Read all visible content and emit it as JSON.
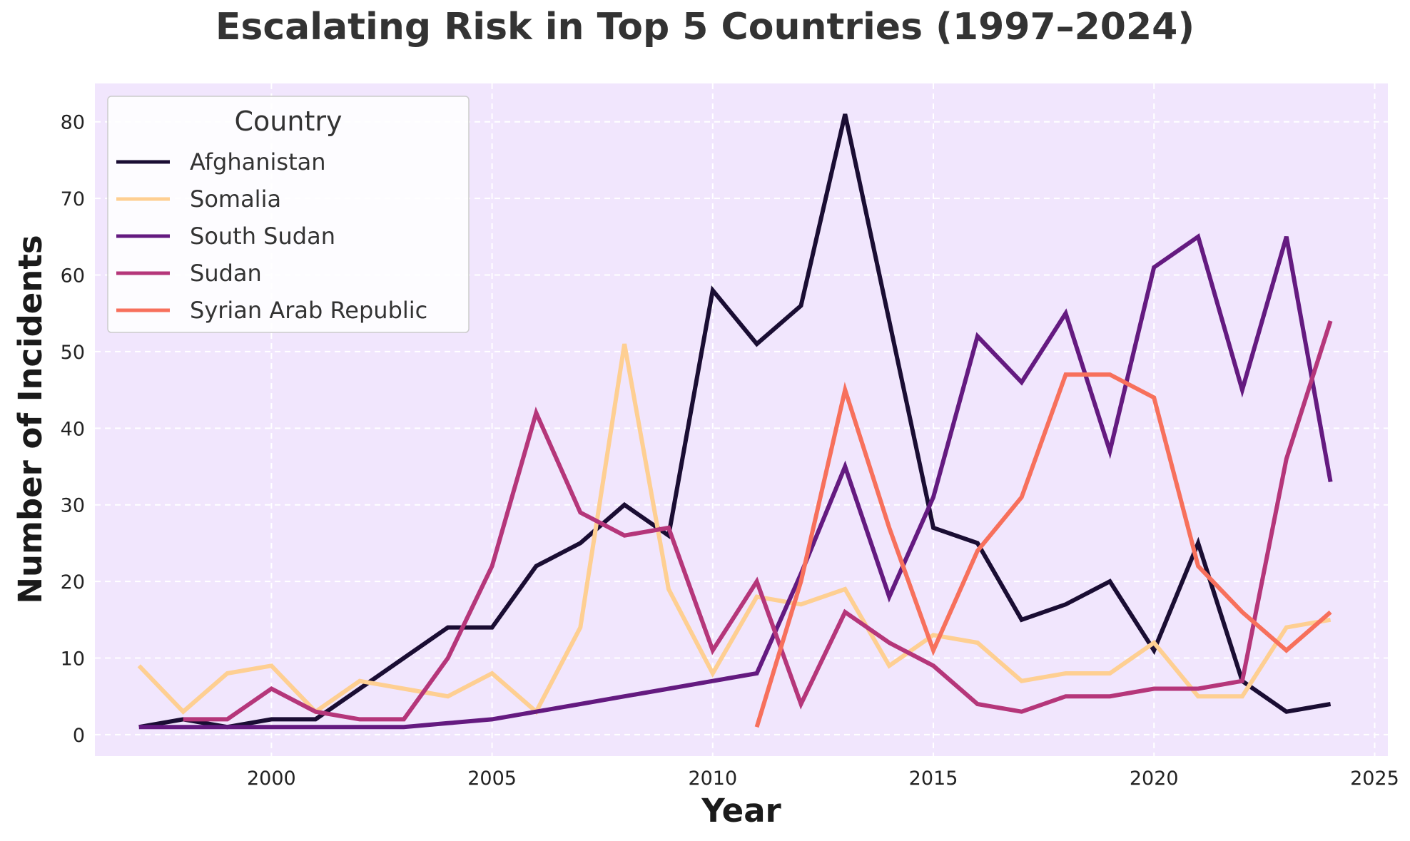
{
  "chart_data": {
    "type": "line",
    "title": "Escalating Risk in Top 5 Countries (1997–2024)",
    "xlabel": "Year",
    "ylabel": "Number of Incidents",
    "xlim": [
      1996,
      2025.3
    ],
    "ylim": [
      -2.8,
      85
    ],
    "xticks": [
      2000,
      2005,
      2010,
      2015,
      2020,
      2025
    ],
    "yticks": [
      0,
      10,
      20,
      30,
      40,
      50,
      60,
      70,
      80
    ],
    "grid": true,
    "background": "#f1e6fd",
    "legend": {
      "title": "Country",
      "placement": "top-left"
    },
    "series": [
      {
        "name": "Afghanistan",
        "color": "#1a0d33",
        "x": [
          1997,
          1998,
          1999,
          2000,
          2001,
          2002,
          2003,
          2004,
          2005,
          2006,
          2007,
          2008,
          2009,
          2010,
          2011,
          2012,
          2013,
          2014,
          2015,
          2016,
          2017,
          2018,
          2019,
          2020,
          2021,
          2022,
          2023,
          2024
        ],
        "y": [
          1,
          2,
          1,
          2,
          2,
          6,
          10,
          14,
          14,
          22,
          25,
          30,
          26,
          58,
          51,
          56,
          81,
          54,
          27,
          25,
          15,
          17,
          20,
          11,
          25,
          7,
          3,
          4
        ]
      },
      {
        "name": "Somalia",
        "color": "#fecf92",
        "x": [
          1997,
          1998,
          1999,
          2000,
          2001,
          2002,
          2003,
          2004,
          2005,
          2006,
          2007,
          2008,
          2009,
          2010,
          2011,
          2012,
          2013,
          2014,
          2015,
          2016,
          2017,
          2018,
          2019,
          2020,
          2021,
          2022,
          2023,
          2024
        ],
        "y": [
          9,
          3,
          8,
          9,
          3,
          7,
          6,
          5,
          8,
          3,
          14,
          51,
          19,
          8,
          18,
          17,
          19,
          9,
          13,
          12,
          7,
          8,
          8,
          12,
          5,
          5,
          14,
          15
        ]
      },
      {
        "name": "South Sudan",
        "color": "#641a80",
        "x": [
          1997,
          1998,
          1999,
          2000,
          2001,
          2002,
          2003,
          2004,
          2005,
          2006,
          2007,
          2008,
          2009,
          2010,
          2011,
          2012,
          2013,
          2014,
          2015,
          2016,
          2017,
          2018,
          2019,
          2020,
          2021,
          2022,
          2023,
          2024
        ],
        "y": [
          1,
          1,
          1,
          1,
          1,
          1,
          1,
          1.5,
          2,
          3,
          4,
          5,
          6,
          7,
          8,
          21,
          35,
          18,
          31,
          52,
          46,
          55,
          37,
          61,
          65,
          45,
          65,
          33
        ]
      },
      {
        "name": "Sudan",
        "color": "#b5367a",
        "x": [
          1998,
          1999,
          2000,
          2001,
          2002,
          2003,
          2004,
          2005,
          2006,
          2007,
          2008,
          2009,
          2010,
          2011,
          2012,
          2013,
          2014,
          2015,
          2016,
          2017,
          2018,
          2019,
          2020,
          2021,
          2022,
          2023,
          2024
        ],
        "y": [
          2,
          2,
          6,
          3,
          2,
          2,
          10,
          22,
          42,
          29,
          26,
          27,
          11,
          20,
          4,
          16,
          12,
          9,
          4,
          3,
          5,
          5,
          6,
          6,
          7,
          36,
          54
        ]
      },
      {
        "name": "Syrian Arab Republic",
        "color": "#f7705c",
        "x": [
          2011,
          2012,
          2013,
          2014,
          2015,
          2016,
          2017,
          2018,
          2019,
          2020,
          2021,
          2022,
          2023,
          2024
        ],
        "y": [
          1,
          20,
          45,
          27,
          11,
          24,
          31,
          47,
          47,
          44,
          22,
          16,
          11,
          16
        ]
      }
    ]
  }
}
